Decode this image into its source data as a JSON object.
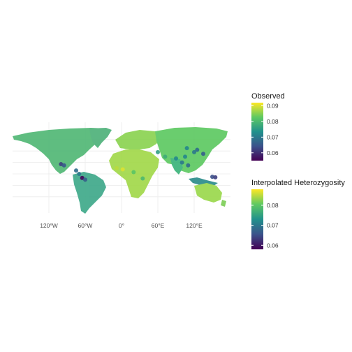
{
  "map": {
    "x_axis_labels": [
      "120°W",
      "60°W",
      "0°",
      "60°E",
      "120°E"
    ],
    "x_axis_values": [
      -120,
      -60,
      0,
      60,
      120
    ],
    "lat_grid": [
      -40,
      -20,
      0,
      20,
      40,
      60
    ]
  },
  "legends": [
    {
      "title": "Observed",
      "ticks": [
        "0.09",
        "0.08",
        "0.07",
        "0.06"
      ],
      "tick_values": [
        0.09,
        0.08,
        0.07,
        0.06
      ],
      "range": [
        0.055,
        0.092
      ]
    },
    {
      "title": "Interpolated Heterozygosity",
      "ticks": [
        "0.08",
        "0.07",
        "0.06"
      ],
      "tick_values": [
        0.08,
        0.07,
        0.06
      ],
      "range": [
        0.058,
        0.088
      ]
    }
  ],
  "colors": {
    "viridis": [
      "#440154",
      "#3b528b",
      "#21918c",
      "#5ec962",
      "#fde725"
    ],
    "grid": "#ebebeb"
  },
  "observed_points": [
    {
      "lon": -100,
      "lat": 17,
      "value": 0.062
    },
    {
      "lon": -95,
      "lat": 15,
      "value": 0.065
    },
    {
      "lon": -75,
      "lat": 6,
      "value": 0.068
    },
    {
      "lon": -70,
      "lat": 0,
      "value": 0.07
    },
    {
      "lon": -65,
      "lat": -7,
      "value": 0.056
    },
    {
      "lon": -60,
      "lat": -10,
      "value": 0.066
    },
    {
      "lon": -8,
      "lat": 10,
      "value": 0.088
    },
    {
      "lon": 2,
      "lat": 8,
      "value": 0.09
    },
    {
      "lon": 20,
      "lat": 3,
      "value": 0.082
    },
    {
      "lon": 35,
      "lat": -8,
      "value": 0.08
    },
    {
      "lon": 60,
      "lat": 38,
      "value": 0.076
    },
    {
      "lon": 72,
      "lat": 30,
      "value": 0.078
    },
    {
      "lon": 90,
      "lat": 27,
      "value": 0.072
    },
    {
      "lon": 100,
      "lat": 20,
      "value": 0.07
    },
    {
      "lon": 105,
      "lat": 30,
      "value": 0.072
    },
    {
      "lon": 110,
      "lat": 15,
      "value": 0.068
    },
    {
      "lon": 120,
      "lat": 38,
      "value": 0.07
    },
    {
      "lon": 125,
      "lat": 42,
      "value": 0.068
    },
    {
      "lon": 108,
      "lat": 45,
      "value": 0.072
    },
    {
      "lon": 135,
      "lat": 35,
      "value": 0.066
    },
    {
      "lon": 150,
      "lat": -5,
      "value": 0.064
    },
    {
      "lon": 155,
      "lat": -6,
      "value": 0.062
    }
  ]
}
